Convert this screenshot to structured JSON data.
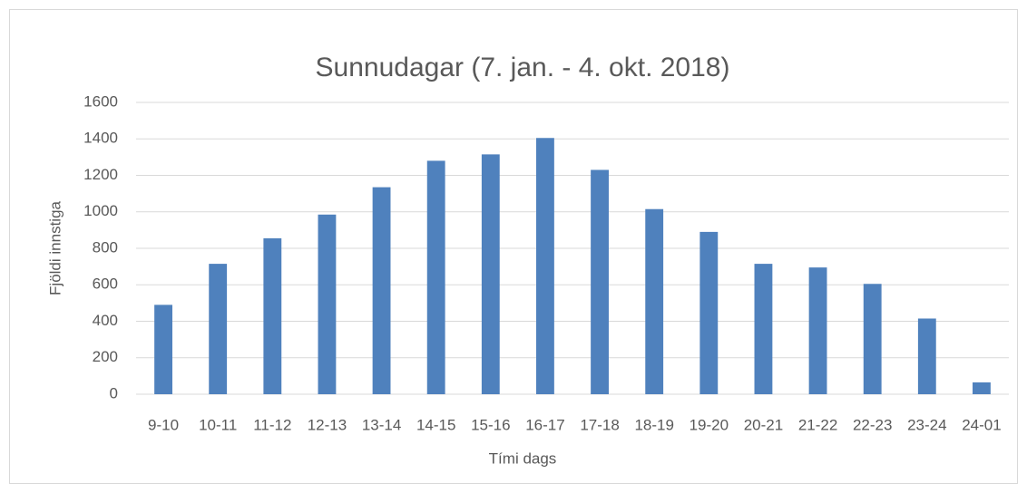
{
  "chart_data": {
    "type": "bar",
    "title": "Sunnudagar (7. jan. - 4. okt. 2018)",
    "x_label": "Tími dags",
    "y_label": "Fjöldi innstiga",
    "categories": [
      "9-10",
      "10-11",
      "11-12",
      "12-13",
      "13-14",
      "14-15",
      "15-16",
      "16-17",
      "17-18",
      "18-19",
      "19-20",
      "20-21",
      "21-22",
      "22-23",
      "23-24",
      "24-01"
    ],
    "values": [
      490,
      715,
      855,
      985,
      1135,
      1280,
      1315,
      1405,
      1230,
      1015,
      890,
      715,
      695,
      605,
      415,
      65
    ],
    "color": "#4f81bd",
    "ylim": [
      0,
      1600
    ],
    "yticks": [
      0,
      200,
      400,
      600,
      800,
      1000,
      1200,
      1400,
      1600
    ],
    "grid": true
  }
}
